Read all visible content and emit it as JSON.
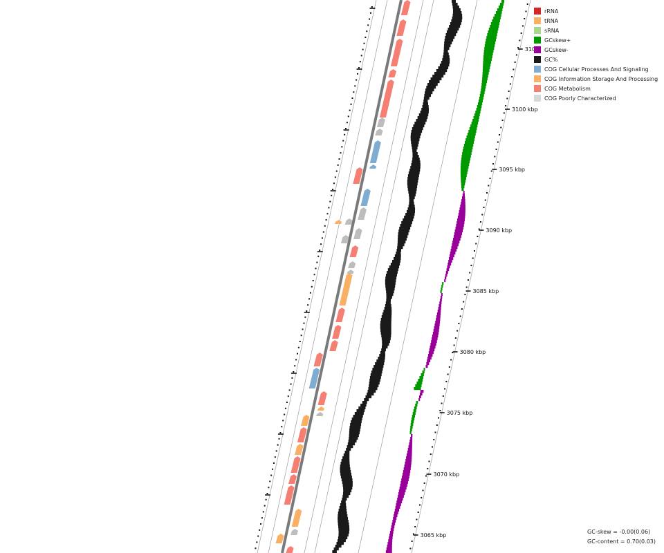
{
  "legend": [
    {
      "label": "rRNA",
      "color": "#d62728"
    },
    {
      "label": "tRNA",
      "color": "#f9b064"
    },
    {
      "label": "sRNA",
      "color": "#a6d98e"
    },
    {
      "label": "GCskew+",
      "color": "#009900"
    },
    {
      "label": "GCskew-",
      "color": "#990099"
    },
    {
      "label": "GC%",
      "color": "#1a1a1a"
    },
    {
      "label": "COG Cellular Processes And Signaling",
      "color": "#7fadd1"
    },
    {
      "label": "COG Information Storage And Processing",
      "color": "#f9b064"
    },
    {
      "label": "COG Metabolism",
      "color": "#f57f72"
    },
    {
      "label": "COG Poorly Characterized",
      "color": "#d8d8d8"
    }
  ],
  "scale_labels": [
    "3065 kbp",
    "3070 kbp",
    "3075 kbp",
    "3080 kbp",
    "3085 kbp",
    "3090 kbp",
    "3095 kbp",
    "3100 kbp",
    "310"
  ],
  "stats": {
    "gc_skew": "GC-skew = -0.00(0.06)",
    "gc_content": "GC-content = 0.70(0.03)"
  }
}
